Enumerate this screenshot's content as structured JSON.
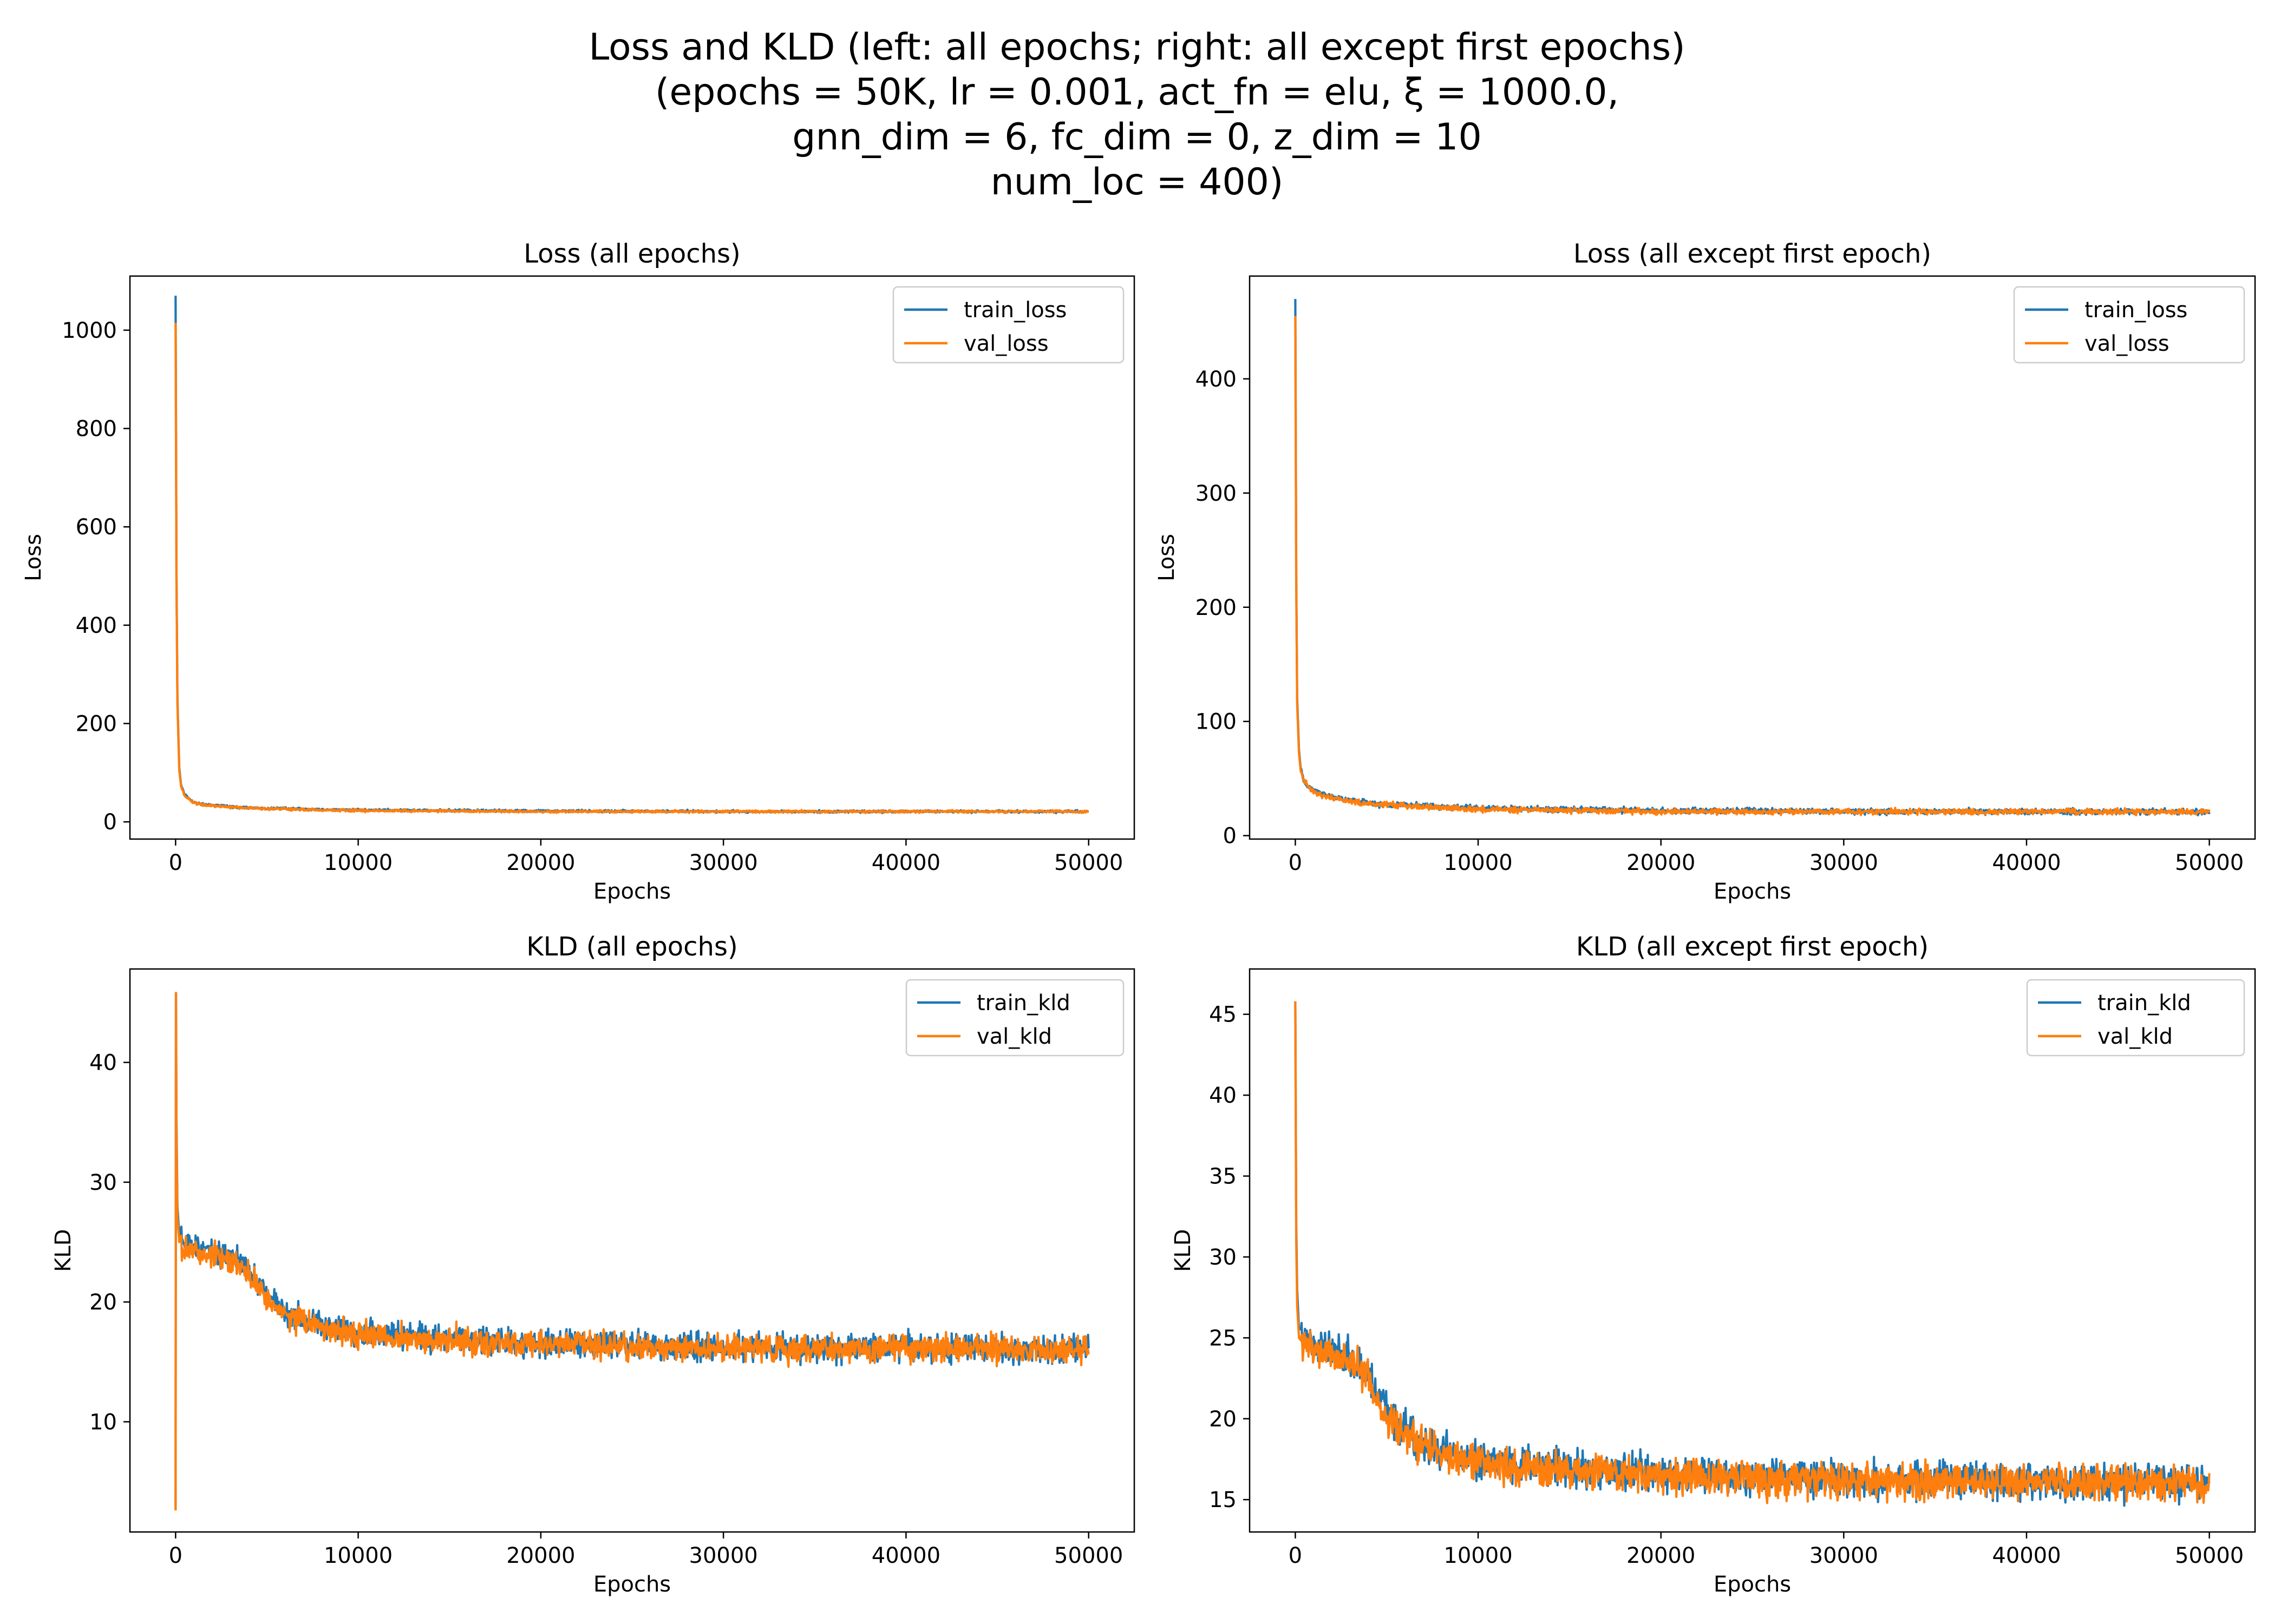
{
  "figure": {
    "title_lines": [
      "Loss and KLD (left: all epochs; right: all except first epochs)",
      "(epochs = 50K, lr = 0.001, act_fn = elu, ξ = 1000.0,",
      "gnn_dim = 6,  fc_dim = 0,  z_dim = 10",
      "num_loc = 400)"
    ]
  },
  "colors": {
    "train": "#1f77b4",
    "val": "#ff7f0e"
  },
  "chart_data": [
    {
      "type": "line",
      "title": "Loss (all epochs)",
      "xlabel": "Epochs",
      "ylabel": "Loss",
      "xlim": [
        -2500,
        52500
      ],
      "ylim": [
        -35,
        1110
      ],
      "xticks": [
        0,
        10000,
        20000,
        30000,
        40000,
        50000
      ],
      "yticks": [
        0,
        200,
        400,
        600,
        800,
        1000
      ],
      "legend_position": "top-right",
      "noise": 1.2,
      "series": [
        {
          "name": "train_loss",
          "color": "#1f77b4",
          "x": [
            0,
            50,
            100,
            200,
            300,
            500,
            800,
            1000,
            1500,
            2000,
            3000,
            4000,
            5000,
            6000,
            8000,
            10000,
            15000,
            20000,
            25000,
            30000,
            35000,
            40000,
            45000,
            50000
          ],
          "y": [
            1070,
            500,
            250,
            110,
            75,
            55,
            45,
            40,
            36,
            34,
            31,
            29,
            27,
            27,
            25,
            24,
            23,
            22,
            22,
            21,
            21,
            21,
            21,
            21
          ]
        },
        {
          "name": "val_loss",
          "color": "#ff7f0e",
          "x": [
            0,
            50,
            100,
            200,
            300,
            500,
            800,
            1000,
            1500,
            2000,
            3000,
            4000,
            5000,
            6000,
            8000,
            10000,
            15000,
            20000,
            25000,
            30000,
            35000,
            40000,
            45000,
            50000
          ],
          "y": [
            1015,
            480,
            240,
            105,
            72,
            53,
            44,
            39,
            35,
            33,
            30,
            28,
            27,
            26,
            24,
            23,
            22,
            21,
            21,
            21,
            21,
            21,
            21,
            21
          ]
        }
      ]
    },
    {
      "type": "line",
      "title": "Loss (all except first epoch)",
      "xlabel": "Epochs",
      "ylabel": "Loss",
      "xlim": [
        -2500,
        52500
      ],
      "ylim": [
        -3,
        490
      ],
      "xticks": [
        0,
        10000,
        20000,
        30000,
        40000,
        50000
      ],
      "yticks": [
        0,
        100,
        200,
        300,
        400
      ],
      "legend_position": "top-right",
      "noise": 1.2,
      "series": [
        {
          "name": "train_loss",
          "color": "#1f77b4",
          "x": [
            0,
            50,
            100,
            200,
            300,
            500,
            800,
            1000,
            1500,
            2000,
            3000,
            4000,
            5000,
            6000,
            8000,
            10000,
            15000,
            20000,
            25000,
            30000,
            35000,
            40000,
            45000,
            50000
          ],
          "y": [
            470,
            230,
            120,
            75,
            58,
            48,
            42,
            40,
            36,
            34,
            31,
            29,
            27,
            27,
            25,
            24,
            23,
            22,
            22,
            21,
            21,
            21,
            21,
            21
          ]
        },
        {
          "name": "val_loss",
          "color": "#ff7f0e",
          "x": [
            0,
            50,
            100,
            200,
            300,
            500,
            800,
            1000,
            1500,
            2000,
            3000,
            4000,
            5000,
            6000,
            8000,
            10000,
            15000,
            20000,
            25000,
            30000,
            35000,
            40000,
            45000,
            50000
          ],
          "y": [
            455,
            220,
            115,
            72,
            56,
            47,
            41,
            39,
            35,
            33,
            30,
            28,
            27,
            26,
            24,
            23,
            22,
            21,
            21,
            21,
            21,
            21,
            21,
            21
          ]
        }
      ]
    },
    {
      "type": "line",
      "title": "KLD (all epochs)",
      "xlabel": "Epochs",
      "ylabel": "KLD",
      "xlim": [
        -2500,
        52500
      ],
      "ylim": [
        0.8,
        47.8
      ],
      "xticks": [
        0,
        10000,
        20000,
        30000,
        40000,
        50000
      ],
      "yticks": [
        10,
        20,
        30,
        40
      ],
      "legend_position": "top-right",
      "noise": 0.55,
      "series": [
        {
          "name": "train_kld",
          "color": "#1f77b4",
          "x": [
            0,
            20,
            50,
            100,
            200,
            500,
            1000,
            2000,
            3000,
            4000,
            5000,
            6000,
            7000,
            8000,
            10000,
            12000,
            15000,
            20000,
            25000,
            30000,
            35000,
            40000,
            45000,
            50000
          ],
          "y": [
            2.7,
            45.8,
            35,
            28,
            25.5,
            24.8,
            24.5,
            24.2,
            23.8,
            22.8,
            20.5,
            19.2,
            18.5,
            18,
            17.5,
            17.2,
            17,
            16.6,
            16.4,
            16.2,
            16.2,
            16.2,
            16.1,
            16.1
          ]
        },
        {
          "name": "val_kld",
          "color": "#ff7f0e",
          "x": [
            0,
            20,
            50,
            100,
            200,
            500,
            1000,
            2000,
            3000,
            4000,
            5000,
            6000,
            7000,
            8000,
            10000,
            12000,
            15000,
            20000,
            25000,
            30000,
            35000,
            40000,
            45000,
            50000
          ],
          "y": [
            2.6,
            45.8,
            34,
            27,
            25,
            24.5,
            24.2,
            23.9,
            23.5,
            22.5,
            20.2,
            19,
            18.3,
            17.8,
            17.3,
            17,
            16.8,
            16.5,
            16.3,
            16.1,
            16.1,
            16.1,
            16,
            16
          ]
        }
      ]
    },
    {
      "type": "line",
      "title": "KLD (all except first epoch)",
      "xlabel": "Epochs",
      "ylabel": "KLD",
      "xlim": [
        -2500,
        52500
      ],
      "ylim": [
        13.0,
        47.8
      ],
      "xticks": [
        0,
        10000,
        20000,
        30000,
        40000,
        50000
      ],
      "yticks": [
        15,
        20,
        25,
        30,
        35,
        40,
        45
      ],
      "legend_position": "top-right",
      "noise": 0.55,
      "series": [
        {
          "name": "train_kld",
          "color": "#1f77b4",
          "x": [
            0,
            50,
            100,
            200,
            500,
            1000,
            2000,
            3000,
            4000,
            5000,
            6000,
            7000,
            8000,
            10000,
            12000,
            15000,
            20000,
            25000,
            30000,
            35000,
            40000,
            45000,
            50000
          ],
          "y": [
            45.8,
            32,
            28,
            25.5,
            24.8,
            24.5,
            24.2,
            23.8,
            22.8,
            20.5,
            19.2,
            18.5,
            18,
            17.5,
            17.2,
            17,
            16.6,
            16.4,
            16.2,
            16.2,
            16.2,
            16.1,
            16.1
          ]
        },
        {
          "name": "val_kld",
          "color": "#ff7f0e",
          "x": [
            0,
            50,
            100,
            200,
            500,
            1000,
            2000,
            3000,
            4000,
            5000,
            6000,
            7000,
            8000,
            10000,
            12000,
            15000,
            20000,
            25000,
            30000,
            35000,
            40000,
            45000,
            50000
          ],
          "y": [
            45.8,
            31,
            27,
            25,
            24.5,
            24.2,
            23.9,
            23.5,
            22.5,
            20.2,
            19,
            18.3,
            17.8,
            17.3,
            17,
            16.8,
            16.5,
            16.3,
            16.1,
            16.1,
            16.1,
            16,
            16
          ]
        }
      ]
    }
  ]
}
